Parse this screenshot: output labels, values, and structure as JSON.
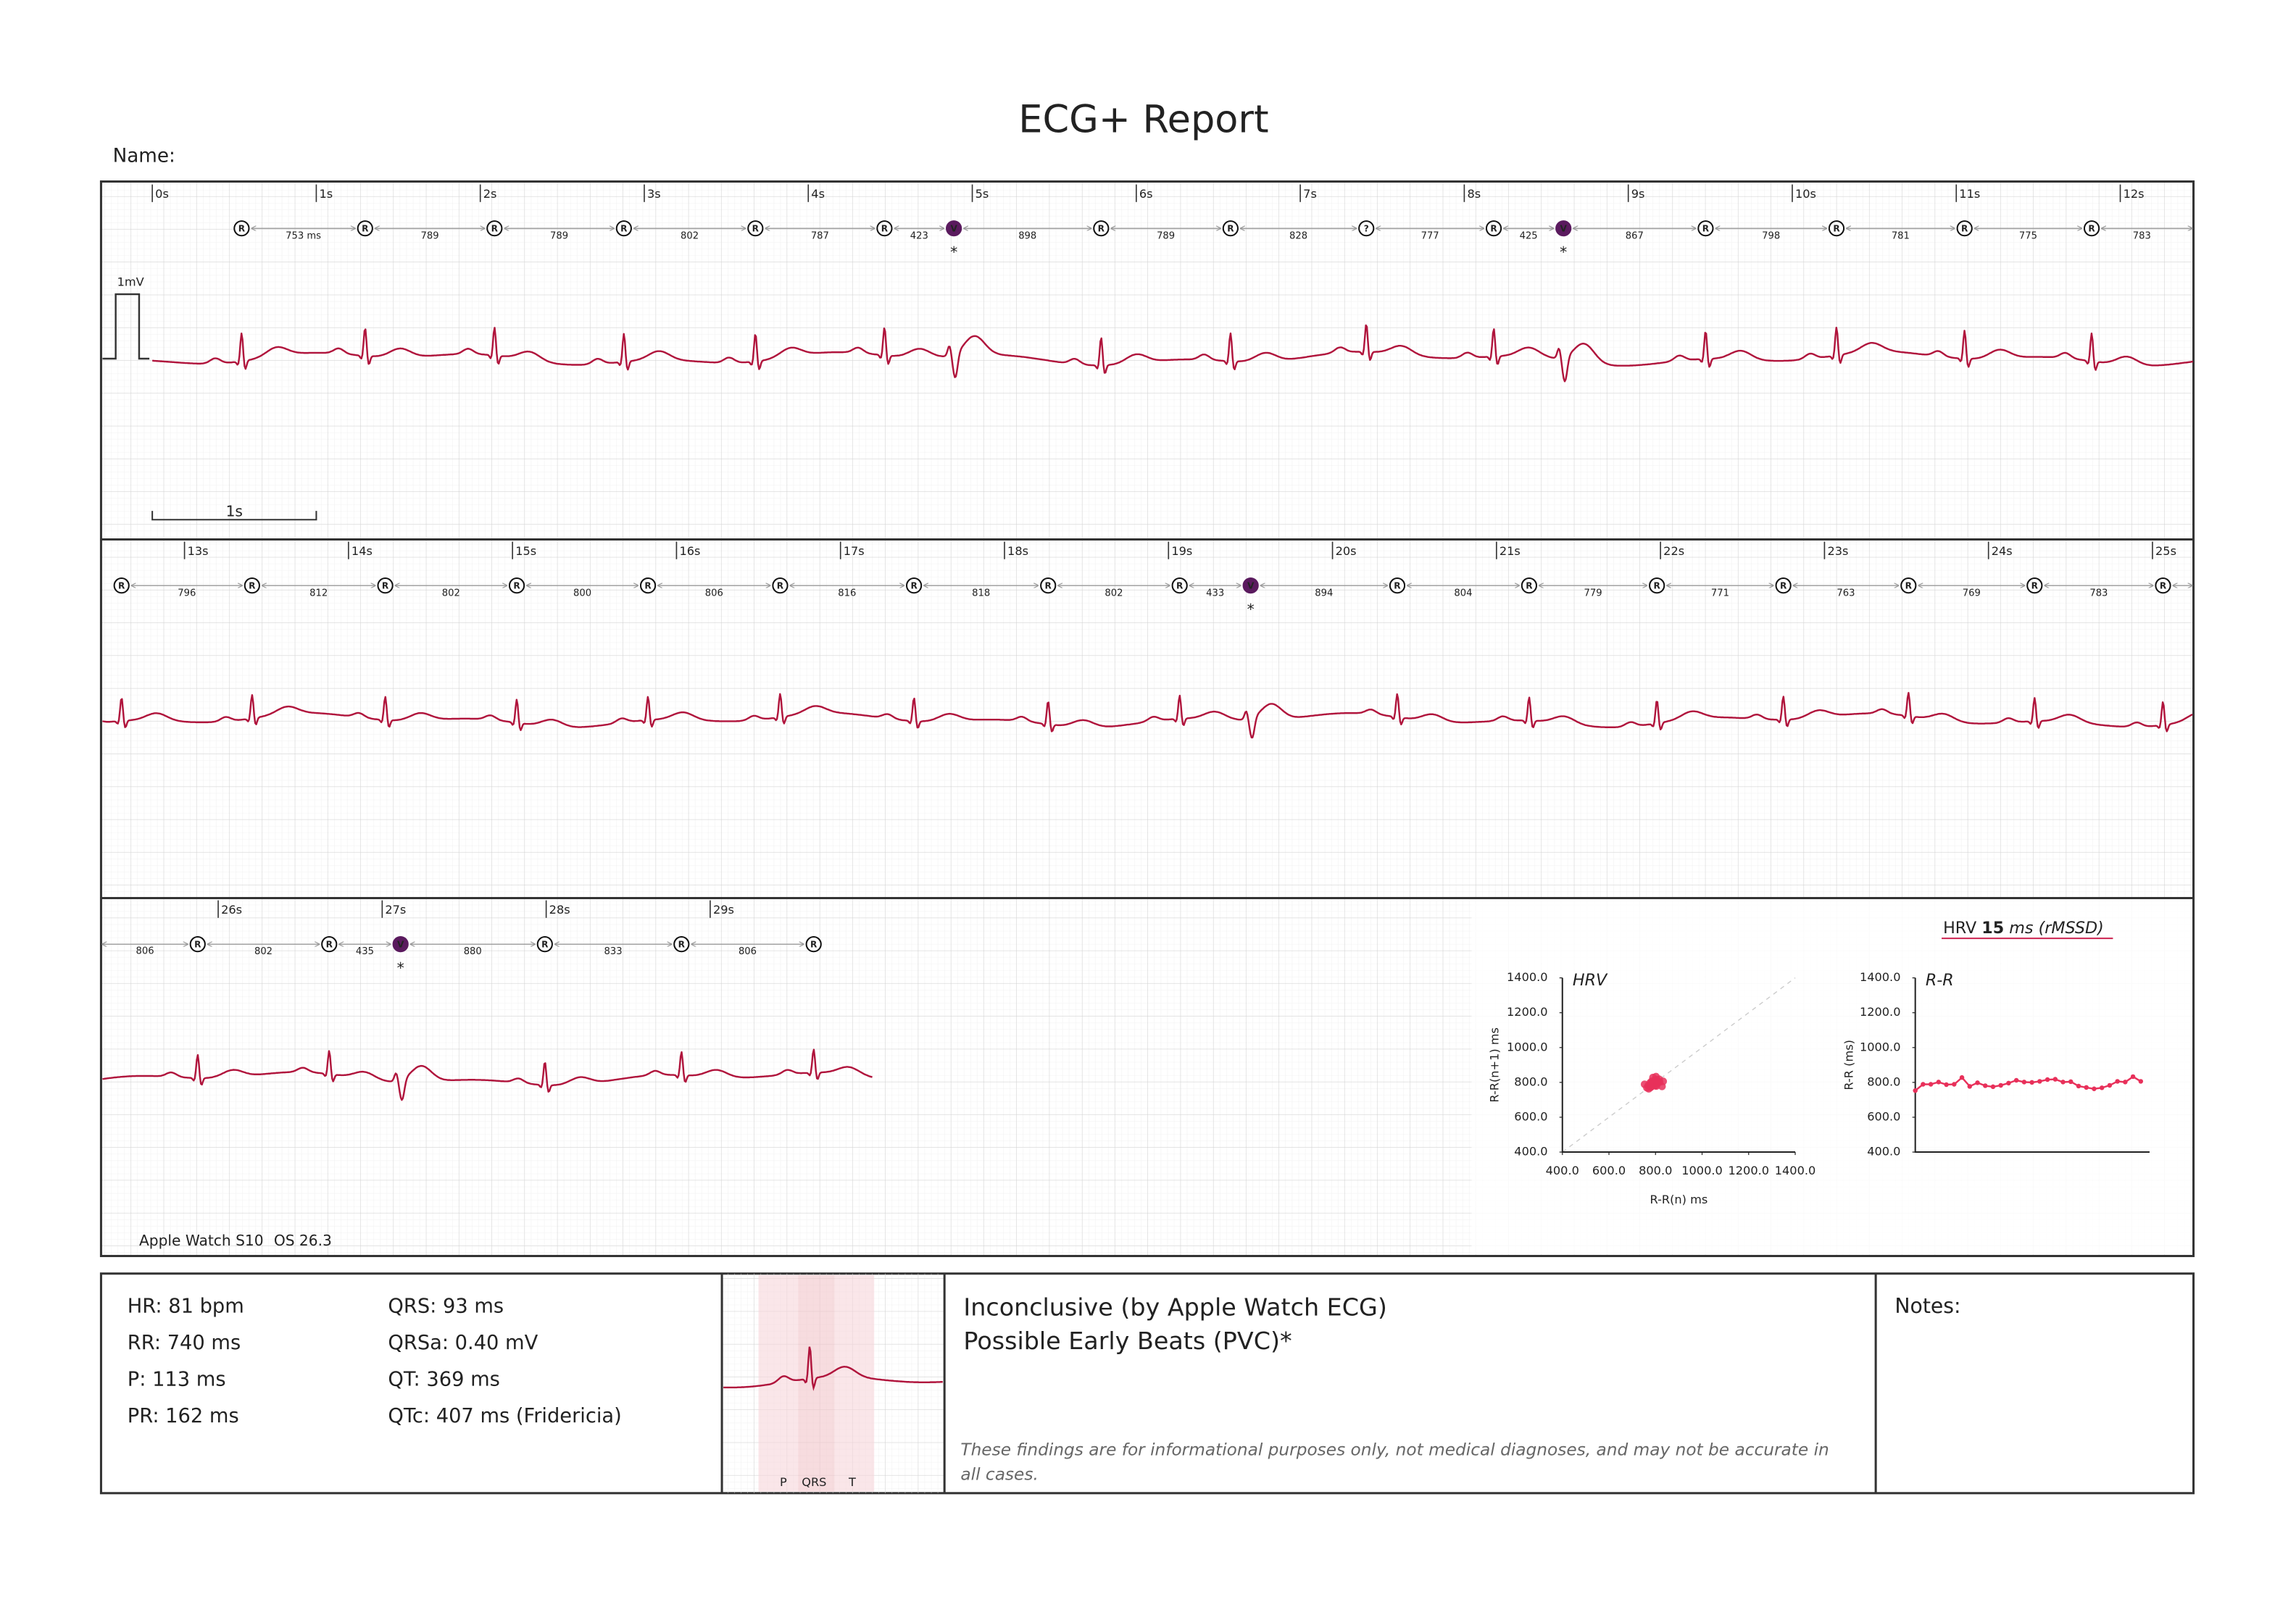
{
  "header": {
    "title": "ECG+ Report",
    "name_label": "Name:"
  },
  "calibration": {
    "amplitude": "1mV",
    "scale": "1s"
  },
  "pvc_mark": "*",
  "strips": [
    {
      "time_labels": [
        "0s",
        "1s",
        "2s",
        "3s",
        "4s",
        "5s",
        "6s",
        "7s",
        "8s",
        "9s",
        "10s",
        "11s",
        "12s"
      ],
      "beats": [
        "R",
        "R",
        "R",
        "R",
        "R",
        "R",
        "V",
        "R",
        "R",
        "?",
        "R",
        "V",
        "R",
        "R",
        "R",
        "R"
      ],
      "intervals": [
        753,
        789,
        789,
        802,
        787,
        423,
        898,
        789,
        828,
        777,
        425,
        867,
        798,
        781,
        775,
        783
      ],
      "unit": "ms"
    },
    {
      "time_labels": [
        "13s",
        "14s",
        "15s",
        "16s",
        "17s",
        "18s",
        "19s",
        "20s",
        "21s",
        "22s",
        "23s",
        "24s",
        "25s"
      ],
      "beats": [
        "R",
        "R",
        "R",
        "R",
        "R",
        "R",
        "R",
        "R",
        "R",
        "V",
        "R",
        "R",
        "R",
        "R",
        "R",
        "R",
        "R"
      ],
      "intervals": [
        796,
        812,
        802,
        800,
        806,
        816,
        818,
        802,
        433,
        894,
        804,
        779,
        771,
        763,
        769,
        783
      ]
    },
    {
      "time_labels": [
        "26s",
        "27s",
        "28s",
        "29s"
      ],
      "lead_interval": 806,
      "beats": [
        "R",
        "R",
        "V",
        "R",
        "R",
        "R"
      ],
      "intervals": [
        802,
        435,
        880,
        833,
        806
      ]
    }
  ],
  "device": {
    "model": "Apple Watch S10",
    "os": "OS 26.3"
  },
  "hrv_summary": {
    "label": "HRV",
    "value": 15,
    "unit": "ms (rMSSD)"
  },
  "chart_data": [
    {
      "type": "scatter",
      "title": "HRV",
      "xlabel": "R-R(n) ms",
      "ylabel": "R-R(n+1) ms",
      "color": "#e8305a",
      "x": [
        753,
        789,
        789,
        802,
        787,
        789,
        828,
        777,
        798,
        781,
        775,
        783,
        796,
        812,
        802,
        800,
        806,
        816,
        818,
        802,
        804,
        779,
        771,
        763,
        769,
        783,
        806,
        802,
        833
      ],
      "y": [
        789,
        789,
        802,
        787,
        789,
        828,
        777,
        798,
        781,
        775,
        783,
        796,
        812,
        802,
        800,
        806,
        816,
        818,
        802,
        804,
        779,
        771,
        763,
        769,
        783,
        806,
        802,
        833,
        806
      ],
      "xlim": [
        400,
        1400
      ],
      "ylim": [
        400,
        1400
      ],
      "xticks": [
        {
          "value": 400,
          "label": "400.0"
        },
        {
          "value": 600,
          "label": "600.0"
        },
        {
          "value": 800,
          "label": "800.0"
        },
        {
          "value": 1000,
          "label": "1000.0"
        },
        {
          "value": 1200,
          "label": "1200.0"
        },
        {
          "value": 1400,
          "label": "1400.0"
        }
      ],
      "yticks": [
        {
          "value": 400,
          "label": "400.0"
        },
        {
          "value": 600,
          "label": "600.0"
        },
        {
          "value": 800,
          "label": "800.0"
        },
        {
          "value": 1000,
          "label": "1000.0"
        },
        {
          "value": 1200,
          "label": "1200.0"
        },
        {
          "value": 1400,
          "label": "1400.0"
        }
      ]
    },
    {
      "type": "line",
      "title": "R-R",
      "ylabel": "R-R (ms)",
      "color": "#e8305a",
      "values": [
        753,
        789,
        789,
        802,
        787,
        789,
        828,
        777,
        798,
        781,
        775,
        783,
        796,
        812,
        802,
        800,
        806,
        816,
        818,
        802,
        804,
        779,
        771,
        763,
        769,
        783,
        806,
        802,
        833,
        806
      ],
      "ylim": [
        400,
        1400
      ],
      "yticks": [
        {
          "value": 400,
          "label": "400.0"
        },
        {
          "value": 600,
          "label": "600.0"
        },
        {
          "value": 800,
          "label": "800.0"
        },
        {
          "value": 1000,
          "label": "1000.0"
        },
        {
          "value": 1200,
          "label": "1200.0"
        },
        {
          "value": 1400,
          "label": "1400.0"
        }
      ]
    }
  ],
  "measurements": [
    [
      "HR: 81 bpm",
      "RR: 740 ms",
      "P: 113 ms",
      "PR: 162 ms"
    ],
    [
      "QRS: 93 ms",
      "QRSa: 0.40 mV",
      "QT: 369 ms",
      "QTc: 407 ms (Fridericia)"
    ]
  ],
  "waves": [
    "P",
    "QRS",
    "T"
  ],
  "findings": [
    "Inconclusive (by Apple Watch ECG)",
    "Possible Early Beats (PVC)*"
  ],
  "disclaimer": "These findings are for informational purposes only, not medical diagnoses, and may not be accurate in all cases.",
  "notes_label": "Notes:"
}
